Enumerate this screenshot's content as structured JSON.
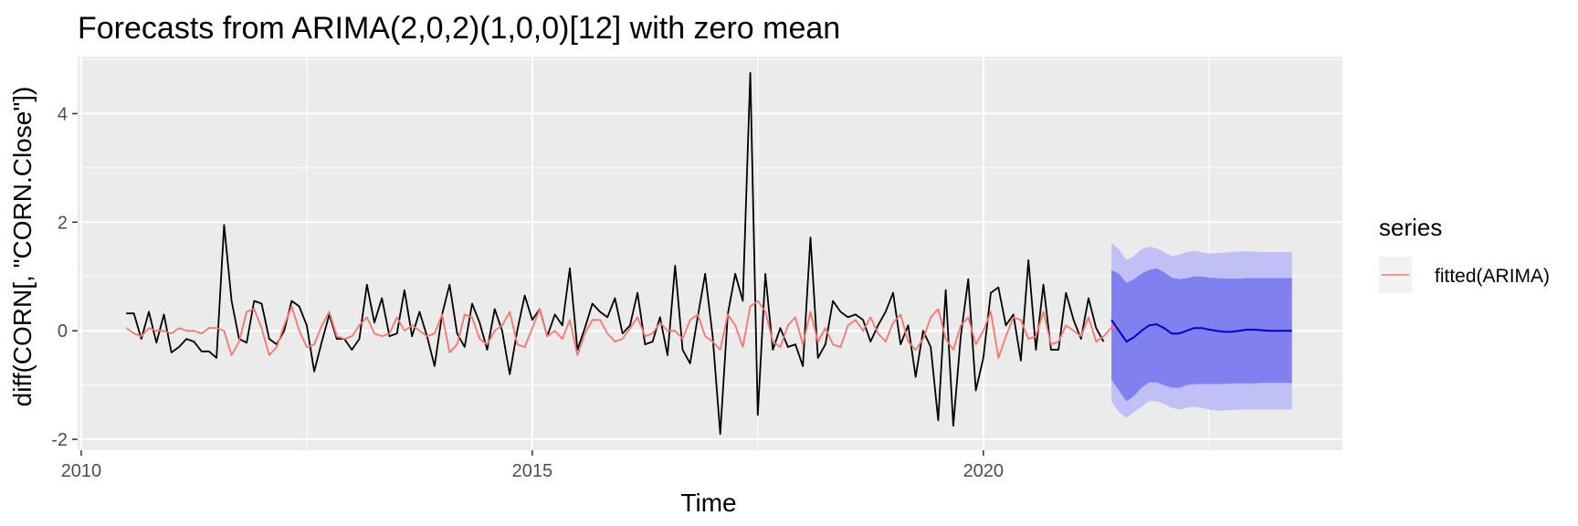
{
  "chart_data": {
    "type": "line",
    "title": "Forecasts from ARIMA(2,0,2)(1,0,0)[12] with zero mean",
    "xlabel": "Time",
    "ylabel": "diff(CORN[, \"CORN.Close\"])",
    "xlim": [
      2009.96,
      2023.98
    ],
    "ylim": [
      -2.2,
      5.05
    ],
    "x_ticks": [
      2010,
      2015,
      2020
    ],
    "y_ticks": [
      -2,
      0,
      2,
      4
    ],
    "grid": true,
    "legend": {
      "title": "series",
      "position": "right",
      "entries": [
        "fitted(ARIMA)"
      ]
    },
    "colors": {
      "actual": "#000000",
      "fitted": "#f8766d",
      "forecast": "#0000cc",
      "band80": "#8080f0",
      "band95": "#c0c0f7",
      "panel": "#ebebeb",
      "grid": "#ffffff"
    },
    "series": [
      {
        "x_start": 2010.5,
        "step": 0.08333,
        "values": [
          0.32,
          0.32,
          -0.15,
          0.35,
          -0.22,
          0.3,
          -0.4,
          -0.3,
          -0.15,
          -0.2,
          -0.38,
          -0.38,
          -0.5,
          1.95,
          0.55,
          -0.15,
          -0.22,
          0.55,
          0.5,
          -0.15,
          -0.25,
          0.0,
          0.55,
          0.45,
          0.1,
          -0.75,
          -0.2,
          0.3,
          -0.15,
          -0.15,
          -0.35,
          -0.15,
          0.85,
          0.15,
          0.6,
          -0.1,
          -0.05,
          0.75,
          -0.1,
          0.35,
          -0.1,
          -0.65,
          0.3,
          0.85,
          -0.05,
          -0.3,
          0.5,
          0.15,
          -0.35,
          0.4,
          0.0,
          -0.8,
          0.0,
          0.65,
          0.2,
          0.4,
          -0.1,
          0.3,
          0.1,
          1.15,
          -0.35,
          0.05,
          0.5,
          0.35,
          0.25,
          0.6,
          -0.05,
          0.1,
          0.7,
          -0.25,
          -0.2,
          0.25,
          -0.45,
          1.2,
          -0.35,
          -0.6,
          0.25,
          1.05,
          -0.1,
          -1.9,
          0.3,
          1.05,
          0.55,
          4.75,
          -1.55,
          1.05,
          -0.35,
          0.05,
          -0.3,
          -0.25,
          -0.65,
          1.72,
          -0.5,
          -0.25,
          0.55,
          0.35,
          0.25,
          0.3,
          0.2,
          -0.2,
          0.1,
          0.35,
          0.7,
          -0.25,
          0.1,
          -0.85,
          0.0,
          -0.3,
          -1.65,
          0.75,
          -1.75,
          -0.1,
          0.95,
          -1.1,
          -0.5,
          0.7,
          0.8,
          0.1,
          0.3,
          -0.55,
          1.3,
          -0.35,
          0.85,
          -0.35,
          -0.35,
          0.7,
          0.2,
          -0.15,
          0.6,
          0.05,
          -0.2
        ]
      },
      {
        "name": "fitted(ARIMA)",
        "x_start": 2010.5,
        "step": 0.08333,
        "values": [
          0.05,
          -0.05,
          -0.1,
          0.05,
          0.0,
          0.0,
          -0.05,
          0.05,
          0.0,
          0.0,
          -0.05,
          0.05,
          0.05,
          0.0,
          -0.45,
          -0.2,
          0.35,
          0.4,
          0.05,
          -0.45,
          -0.3,
          0.1,
          0.45,
          0.0,
          -0.3,
          -0.25,
          0.1,
          0.35,
          -0.1,
          -0.15,
          -0.1,
          0.1,
          0.25,
          -0.05,
          -0.1,
          -0.05,
          0.25,
          0.0,
          0.1,
          0.0,
          -0.1,
          -0.05,
          0.3,
          -0.4,
          -0.25,
          0.3,
          0.25,
          -0.15,
          -0.25,
          0.0,
          0.1,
          0.35,
          -0.25,
          -0.3,
          0.05,
          0.4,
          -0.1,
          0.0,
          -0.15,
          0.2,
          -0.45,
          -0.05,
          0.2,
          0.2,
          -0.05,
          -0.2,
          -0.15,
          0.05,
          0.25,
          -0.1,
          -0.05,
          0.15,
          0.0,
          0.0,
          -0.15,
          0.2,
          0.3,
          -0.1,
          -0.2,
          -0.35,
          0.3,
          0.1,
          -0.3,
          0.45,
          0.55,
          0.35,
          -0.2,
          -0.3,
          0.1,
          0.25,
          -0.25,
          0.35,
          -0.2,
          0.05,
          -0.25,
          -0.3,
          0.1,
          0.2,
          0.0,
          0.25,
          -0.05,
          -0.2,
          0.15,
          0.3,
          -0.2,
          -0.35,
          -0.15,
          0.25,
          0.4,
          -0.15,
          -0.35,
          0.1,
          0.25,
          -0.25,
          0.0,
          0.35,
          -0.5,
          -0.1,
          0.25,
          0.2,
          -0.15,
          -0.1,
          0.35,
          -0.25,
          -0.2,
          0.1,
          0.0,
          -0.1,
          0.25,
          -0.2,
          -0.1,
          0.05,
          0.1
        ]
      }
    ],
    "forecast": {
      "x_start": 2021.42,
      "step": 0.08333,
      "mean": [
        0.2,
        0.0,
        -0.2,
        -0.12,
        0.0,
        0.1,
        0.12,
        0.05,
        -0.05,
        -0.05,
        0.0,
        0.05,
        0.05,
        0.02,
        0.0,
        -0.02,
        -0.02,
        0.0,
        0.02,
        0.02,
        0.01,
        0.0,
        0.0,
        0.0,
        0.0
      ],
      "lo80": [
        -0.9,
        -1.1,
        -1.3,
        -1.2,
        -1.05,
        -0.95,
        -0.95,
        -1.0,
        -1.05,
        -1.05,
        -1.0,
        -0.98,
        -0.98,
        -0.98,
        -0.98,
        -0.98,
        -0.97,
        -0.97,
        -0.97,
        -0.97,
        -0.96,
        -0.96,
        -0.96,
        -0.96,
        -0.96
      ],
      "hi80": [
        1.12,
        1.05,
        0.88,
        0.95,
        1.05,
        1.12,
        1.15,
        1.08,
        0.98,
        0.95,
        0.97,
        1.0,
        1.0,
        0.98,
        0.97,
        0.96,
        0.96,
        0.96,
        0.97,
        0.97,
        0.97,
        0.97,
        0.97,
        0.97,
        0.97
      ],
      "lo95": [
        -1.3,
        -1.5,
        -1.6,
        -1.5,
        -1.4,
        -1.3,
        -1.3,
        -1.35,
        -1.42,
        -1.45,
        -1.42,
        -1.4,
        -1.42,
        -1.45,
        -1.47,
        -1.47,
        -1.46,
        -1.45,
        -1.45,
        -1.45,
        -1.45,
        -1.45,
        -1.45,
        -1.45,
        -1.45
      ],
      "hi95": [
        1.62,
        1.5,
        1.3,
        1.38,
        1.5,
        1.55,
        1.52,
        1.45,
        1.38,
        1.4,
        1.45,
        1.47,
        1.45,
        1.42,
        1.43,
        1.44,
        1.45,
        1.46,
        1.46,
        1.46,
        1.45,
        1.45,
        1.45,
        1.45,
        1.45
      ]
    }
  }
}
